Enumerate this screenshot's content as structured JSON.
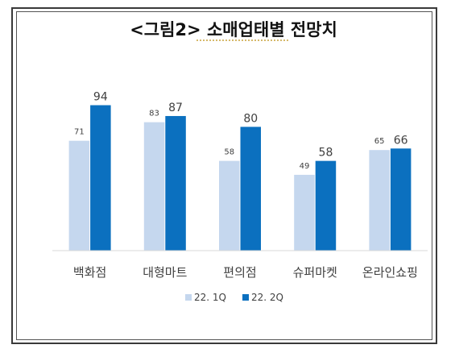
{
  "chart_data": {
    "type": "bar",
    "title": "<그림2> 소매업태별 전망치",
    "categories": [
      "백화점",
      "대형마트",
      "편의점",
      "슈퍼마켓",
      "온라인쇼핑"
    ],
    "series": [
      {
        "name": "22. 1Q",
        "values": [
          71,
          83,
          58,
          49,
          65
        ],
        "color": "#c5d7ee"
      },
      {
        "name": "22. 2Q",
        "values": [
          94,
          87,
          80,
          58,
          66
        ],
        "color": "#0b70bf"
      }
    ],
    "ylim": [
      0,
      100
    ],
    "grid": false,
    "legend": "bottom"
  }
}
